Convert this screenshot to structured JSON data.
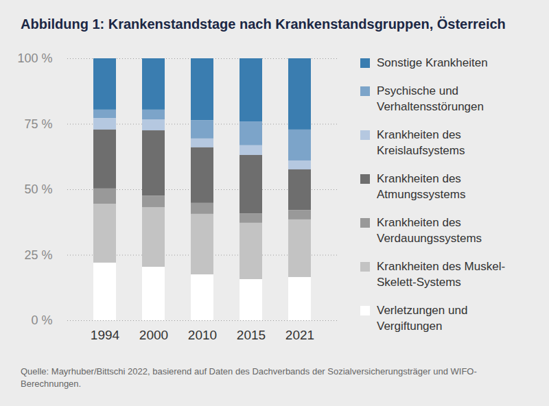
{
  "chart_data": {
    "type": "bar",
    "title": "Abbildung 1: Krankenstandstage nach Krankenstandsgruppen, Österreich",
    "caption": "Quelle: Mayrhuber/Bittschi 2022, basierend auf Daten des Dachverbands der Sozialversicherungsträger und WIFO-Berechnungen.",
    "categories": [
      "1994",
      "2000",
      "2010",
      "2015",
      "2021"
    ],
    "series": [
      {
        "name": "Sonstige Krankheiten",
        "color": "#3a7db0",
        "values": [
          19.6,
          19.6,
          23.6,
          24.1,
          27.2
        ]
      },
      {
        "name": "Psychische und Verhaltensstörungen",
        "color": "#7ca4c9",
        "values": [
          3.2,
          3.7,
          7.0,
          9.1,
          11.8
        ]
      },
      {
        "name": "Krankheiten des Kreislaufsystems",
        "color": "#b5c8e0",
        "values": [
          4.4,
          4.2,
          3.4,
          3.7,
          3.4
        ]
      },
      {
        "name": "Krankheiten des Atmungssystems",
        "color": "#6e6e6e",
        "values": [
          22.5,
          24.9,
          21.2,
          22.3,
          15.5
        ]
      },
      {
        "name": "Krankheiten des Verdauungssystems",
        "color": "#999999",
        "values": [
          5.8,
          4.4,
          4.2,
          3.6,
          3.6
        ]
      },
      {
        "name": "Krankheiten des Muskel-Skelett-Systems",
        "color": "#c3c3c3",
        "values": [
          22.5,
          22.8,
          23.1,
          21.5,
          22.0
        ]
      },
      {
        "name": "Verletzungen und Vergiftungen",
        "color": "#ffffff",
        "values": [
          22.0,
          20.4,
          17.5,
          15.7,
          16.5
        ]
      }
    ],
    "ylim": [
      0,
      100
    ],
    "yticks": [
      {
        "value": 0,
        "label": "0 %"
      },
      {
        "value": 25,
        "label": "25 %"
      },
      {
        "value": 50,
        "label": "50 %"
      },
      {
        "value": 75,
        "label": "75 %"
      },
      {
        "value": 100,
        "label": "100 %"
      }
    ],
    "stacked": true,
    "grid": true,
    "legend": "right"
  }
}
